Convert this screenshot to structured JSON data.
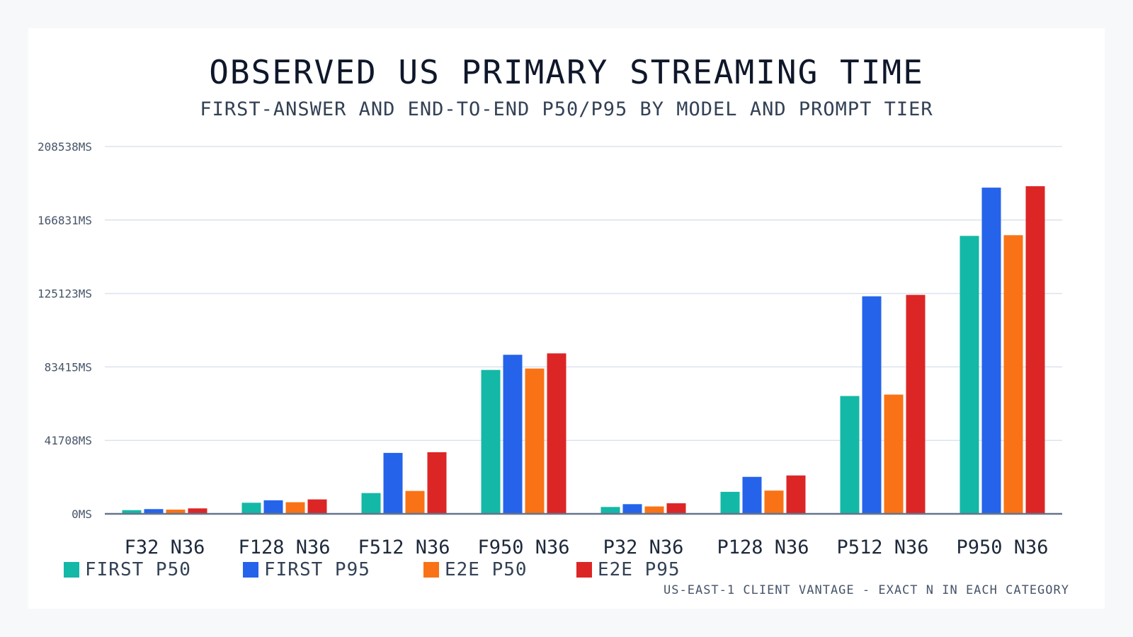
{
  "chart_data": {
    "type": "bar",
    "title": "OBSERVED US PRIMARY STREAMING TIME",
    "subtitle": "FIRST-ANSWER AND END-TO-END P50/P95 BY MODEL AND PROMPT TIER",
    "xlabel": "",
    "ylabel": "",
    "ylim": [
      0,
      208538
    ],
    "y_unit": "MS",
    "y_ticks": [
      "0MS",
      "41708MS",
      "83415MS",
      "125123MS",
      "166831MS",
      "208538MS"
    ],
    "y_tick_values": [
      0,
      41708,
      83415,
      125123,
      166831,
      208538
    ],
    "grid": true,
    "legend_position": "bottom-left",
    "categories": [
      "F32 N36",
      "F128 N36",
      "F512 N36",
      "F950 N36",
      "P32 N36",
      "P128 N36",
      "P512 N36",
      "P950 N36"
    ],
    "series": [
      {
        "name": "FIRST P50",
        "color": "#14b8a6",
        "values": [
          2100,
          6300,
          11800,
          81700,
          3900,
          12500,
          66900,
          157800
        ]
      },
      {
        "name": "FIRST P95",
        "color": "#2563eb",
        "values": [
          2700,
          7700,
          34600,
          90300,
          5500,
          21000,
          123500,
          185200
        ]
      },
      {
        "name": "E2E P50",
        "color": "#f97316",
        "values": [
          2400,
          6600,
          13000,
          82500,
          4200,
          13200,
          67700,
          158200
        ]
      },
      {
        "name": "E2E P95",
        "color": "#dc2626",
        "values": [
          3100,
          8200,
          35000,
          91100,
          6000,
          21800,
          124300,
          186000
        ]
      }
    ],
    "footnote": "US-EAST-1 CLIENT VANTAGE - EXACT N IN EACH CATEGORY"
  }
}
